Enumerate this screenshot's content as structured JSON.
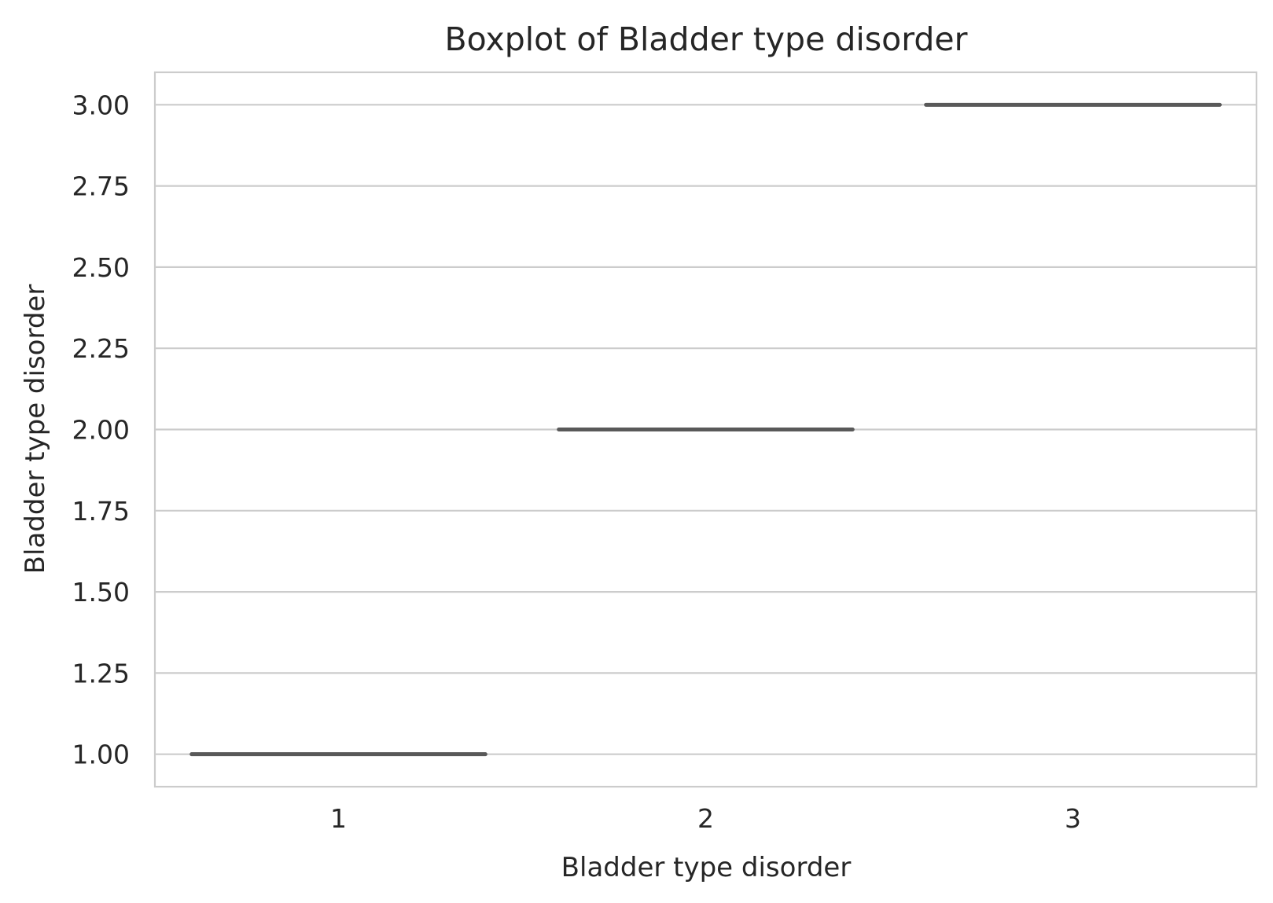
{
  "chart_data": {
    "type": "box",
    "title": "Boxplot of Bladder type disorder",
    "xlabel": "Bladder type disorder",
    "ylabel": "Bladder type disorder",
    "categories": [
      "1",
      "2",
      "3"
    ],
    "boxes": [
      {
        "category": "1",
        "min": 1,
        "q1": 1,
        "median": 1,
        "q3": 1,
        "max": 1
      },
      {
        "category": "2",
        "min": 2,
        "q1": 2,
        "median": 2,
        "q3": 2,
        "max": 2
      },
      {
        "category": "3",
        "min": 3,
        "q1": 3,
        "median": 3,
        "q3": 3,
        "max": 3
      }
    ],
    "ylim": [
      0.9,
      3.1
    ],
    "yticks": [
      1.0,
      1.25,
      1.5,
      1.75,
      2.0,
      2.25,
      2.5,
      2.75,
      3.0
    ],
    "ytick_labels": [
      "1.00",
      "1.25",
      "1.50",
      "1.75",
      "2.00",
      "2.25",
      "2.50",
      "2.75",
      "3.00"
    ],
    "grid": true,
    "colors": {
      "box": "#595959",
      "grid": "#cccccc",
      "text": "#262626"
    }
  }
}
